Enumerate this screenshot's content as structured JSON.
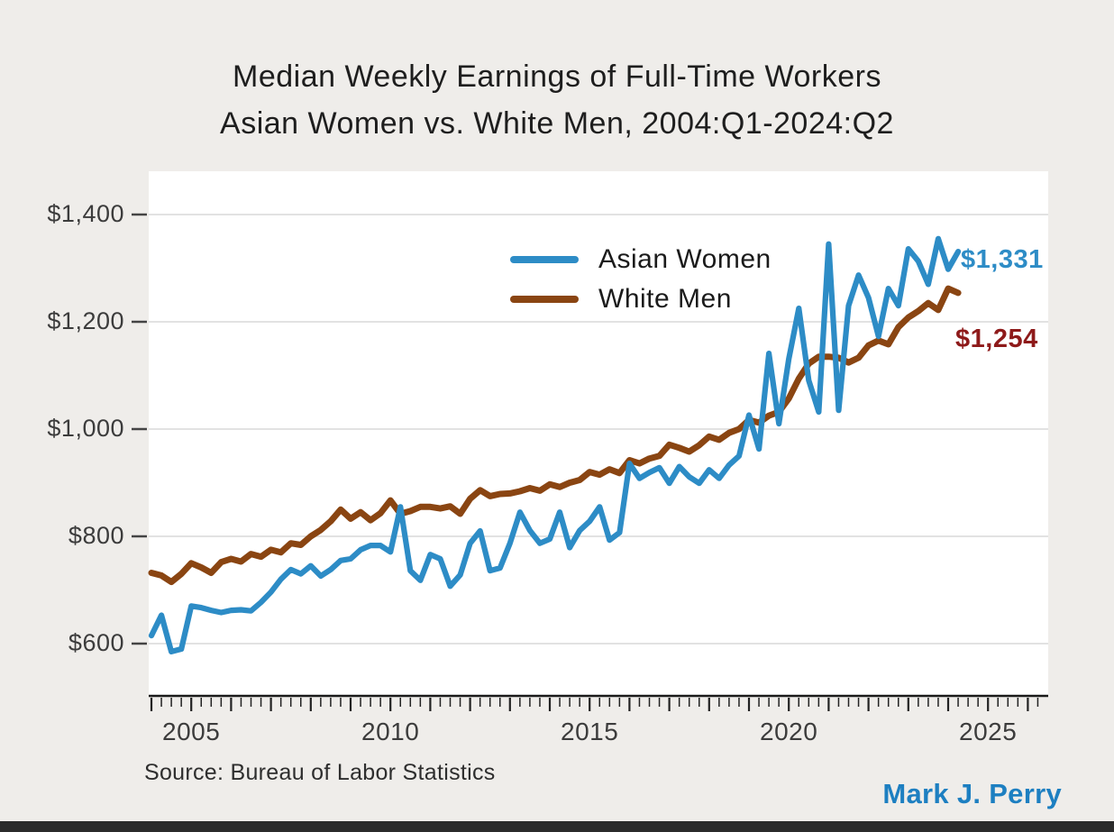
{
  "title": {
    "line1": "Median Weekly Earnings of Full-Time Workers",
    "line2": "Asian Women vs. White Men, 2004:Q1-2024:Q2"
  },
  "legend": {
    "items": [
      {
        "label": "Asian Women",
        "color": "#2d8cc6"
      },
      {
        "label": "White Men",
        "color": "#8a4512"
      }
    ]
  },
  "end_labels": {
    "asian_women": {
      "text": "$1,331",
      "color": "#2d8cc6"
    },
    "white_men": {
      "text": "$1,254",
      "color": "#8e1a1a"
    }
  },
  "source": "Source: Bureau of Labor Statistics",
  "credit": "Mark J. Perry",
  "colors": {
    "background": "#efedea",
    "plot_background": "#ffffff",
    "gridline": "#d9d9d9",
    "axis": "#1a1a1a",
    "tick_label": "#3c3c3c",
    "asian_women_line": "#2d8cc6",
    "white_men_line": "#8a4512",
    "end_label_red": "#8e1a1a",
    "credit_blue": "#1d7fc1",
    "bottom_bar": "#2b2b2b"
  },
  "chart_data": {
    "type": "line",
    "title": "Median Weekly Earnings of Full-Time Workers — Asian Women vs. White Men, 2004:Q1-2024:Q2",
    "x_start": "2004:Q1",
    "x_end": "2024:Q2",
    "x_frequency": "quarterly",
    "grid": true,
    "legend_position": "upper center-left inside plot",
    "ylabel": "",
    "xlabel": "",
    "ylim": [
      500,
      1480
    ],
    "xlim_years": [
      2004,
      2026.75
    ],
    "y_ticks": [
      {
        "label": "$600",
        "value": 600
      },
      {
        "label": "$800",
        "value": 800
      },
      {
        "label": "$1,000",
        "value": 1000
      },
      {
        "label": "$1,200",
        "value": 1200
      },
      {
        "label": "$1,400",
        "value": 1400
      }
    ],
    "x_tick_labels": [
      {
        "label": "2005",
        "year": 2005
      },
      {
        "label": "2010",
        "year": 2010
      },
      {
        "label": "2015",
        "year": 2015
      },
      {
        "label": "2020",
        "year": 2020
      },
      {
        "label": "2025",
        "year": 2025
      }
    ],
    "series": [
      {
        "name": "Asian Women",
        "color": "#2d8cc6",
        "final_value_label": "$1,331",
        "values": [
          615,
          653,
          585,
          590,
          670,
          667,
          662,
          658,
          662,
          663,
          661,
          677,
          696,
          720,
          738,
          730,
          745,
          726,
          738,
          755,
          758,
          775,
          783,
          783,
          771,
          855,
          736,
          718,
          766,
          758,
          707,
          728,
          787,
          810,
          736,
          741,
          787,
          845,
          811,
          787,
          795,
          845,
          779,
          811,
          828,
          855,
          793,
          807,
          936,
          908,
          919,
          928,
          899,
          930,
          911,
          899,
          924,
          908,
          933,
          950,
          1026,
          963,
          1141,
          1010,
          1131,
          1225,
          1091,
          1032,
          1345,
          1035,
          1230,
          1287,
          1245,
          1173,
          1262,
          1230,
          1336,
          1313,
          1270,
          1355,
          1298,
          1331
        ]
      },
      {
        "name": "White Men",
        "color": "#8a4512",
        "final_value_label": "$1,254",
        "values": [
          732,
          727,
          715,
          730,
          750,
          742,
          732,
          752,
          758,
          753,
          767,
          762,
          775,
          770,
          787,
          784,
          800,
          812,
          828,
          850,
          833,
          845,
          830,
          843,
          867,
          842,
          847,
          855,
          855,
          852,
          856,
          842,
          870,
          886,
          875,
          879,
          880,
          884,
          890,
          885,
          897,
          892,
          900,
          905,
          920,
          915,
          925,
          918,
          942,
          936,
          945,
          950,
          971,
          965,
          958,
          970,
          986,
          980,
          993,
          1000,
          1017,
          1012,
          1025,
          1032,
          1057,
          1094,
          1122,
          1135,
          1135,
          1133,
          1124,
          1133,
          1156,
          1165,
          1158,
          1190,
          1208,
          1220,
          1235,
          1222,
          1262,
          1254
        ]
      }
    ]
  }
}
